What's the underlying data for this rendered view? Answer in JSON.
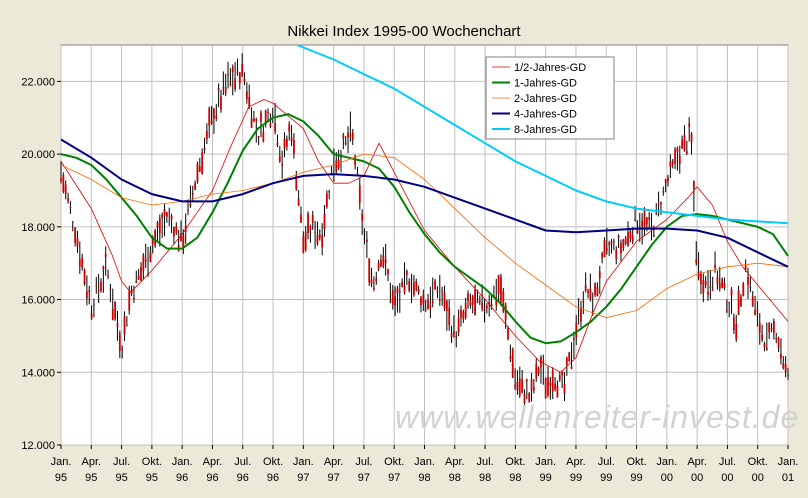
{
  "chart_data": {
    "type": "line",
    "title": "Nikkei Index 1995-00 Wochenchart",
    "watermark": "www.wellenreiter-invest.de",
    "x_ticks": [
      [
        "Jan.",
        "95"
      ],
      [
        "Apr.",
        "95"
      ],
      [
        "Jul.",
        "95"
      ],
      [
        "Okt.",
        "95"
      ],
      [
        "Jan.",
        "96"
      ],
      [
        "Apr.",
        "96"
      ],
      [
        "Jul.",
        "96"
      ],
      [
        "Okt.",
        "96"
      ],
      [
        "Jan.",
        "97"
      ],
      [
        "Apr.",
        "97"
      ],
      [
        "Jul.",
        "97"
      ],
      [
        "Okt.",
        "97"
      ],
      [
        "Jan.",
        "98"
      ],
      [
        "Apr.",
        "98"
      ],
      [
        "Jul.",
        "98"
      ],
      [
        "Okt.",
        "98"
      ],
      [
        "Jan.",
        "99"
      ],
      [
        "Apr.",
        "99"
      ],
      [
        "Jul.",
        "99"
      ],
      [
        "Okt.",
        "99"
      ],
      [
        "Jan.",
        "00"
      ],
      [
        "Apr.",
        "00"
      ],
      [
        "Jul.",
        "00"
      ],
      [
        "Okt.",
        "00"
      ],
      [
        "Jan.",
        "01"
      ]
    ],
    "y_ticks": [
      "12.000",
      "14.000",
      "16.000",
      "18.000",
      "20.000",
      "22.000"
    ],
    "ylim": [
      12000,
      23000
    ],
    "xlim": [
      0,
      24
    ],
    "grid": true,
    "legend_position": "top-right",
    "colors": {
      "bars_high_low": "#000000",
      "bars_body": "#CC0000",
      "plot_bg": "#FFFFFF",
      "frame_bg": "#ECE9D8",
      "grid": "#C0C0C0",
      "watermark": "#D2D2D2"
    },
    "series": [
      {
        "name": "1/2-Jahres-GD",
        "color": "#E00000",
        "width": 0.8,
        "x": [
          0,
          1,
          1.7,
          2,
          2.3,
          3,
          4,
          4.5,
          5,
          5.6,
          6.2,
          6.7,
          7,
          8,
          8.5,
          9,
          9.5,
          10,
          10.5,
          11,
          12,
          13,
          14,
          15,
          15.8,
          16.5,
          17,
          17.5,
          18,
          19,
          20,
          20.7,
          21,
          21.5,
          22,
          22.5,
          23,
          24
        ],
        "y": [
          19800,
          18500,
          17200,
          16500,
          16200,
          16800,
          17800,
          18400,
          19000,
          20200,
          21300,
          21500,
          21400,
          20700,
          19800,
          19200,
          19200,
          19400,
          20300,
          19500,
          17900,
          16900,
          16000,
          15000,
          14300,
          14000,
          14400,
          15500,
          16500,
          17600,
          18200,
          18800,
          19100,
          18600,
          17600,
          16900,
          16400,
          15400
        ]
      },
      {
        "name": "1-Jahres-GD",
        "color": "#008000",
        "width": 2,
        "x": [
          0,
          0.5,
          1,
          1.5,
          2,
          2.5,
          3,
          3.5,
          4,
          4.5,
          5,
          5.5,
          6,
          6.5,
          7,
          7.5,
          8,
          8.5,
          9,
          9.5,
          10,
          10.5,
          11,
          11.5,
          12,
          12.5,
          13,
          13.5,
          14,
          14.5,
          15,
          15.5,
          16,
          16.5,
          17,
          17.5,
          18,
          18.5,
          19,
          19.5,
          20,
          20.5,
          21,
          21.5,
          22,
          22.5,
          23,
          23.5,
          24
        ],
        "y": [
          20000,
          19900,
          19700,
          19300,
          18800,
          18300,
          17700,
          17400,
          17400,
          17700,
          18400,
          19200,
          20100,
          20700,
          21000,
          21100,
          20900,
          20500,
          20000,
          19900,
          19800,
          19600,
          19100,
          18400,
          17800,
          17300,
          16900,
          16600,
          16300,
          15900,
          15400,
          14950,
          14800,
          14850,
          15100,
          15400,
          15800,
          16300,
          16900,
          17500,
          18000,
          18300,
          18350,
          18300,
          18200,
          18100,
          18000,
          17800,
          17200
        ]
      },
      {
        "name": "2-Jahres-GD",
        "color": "#FF6600",
        "width": 0.8,
        "x": [
          0,
          1,
          2,
          3,
          4,
          5,
          6,
          7,
          8,
          9,
          10,
          11,
          12,
          13,
          14,
          15,
          16,
          17,
          18,
          19,
          20,
          21,
          22,
          23,
          24
        ],
        "y": [
          19700,
          19300,
          18800,
          18600,
          18700,
          18900,
          19000,
          19200,
          19500,
          19700,
          20000,
          19900,
          19300,
          18500,
          17700,
          17000,
          16400,
          15800,
          15500,
          15700,
          16300,
          16700,
          16900,
          17000,
          16900
        ]
      },
      {
        "name": "4-Jahres-GD",
        "color": "#000080",
        "width": 2,
        "x": [
          0,
          1,
          2,
          3,
          4,
          5,
          6,
          7,
          8,
          9,
          10,
          11,
          12,
          13,
          14,
          15,
          16,
          17,
          18,
          19,
          20,
          21,
          22,
          23,
          24
        ],
        "y": [
          20400,
          19900,
          19300,
          18900,
          18700,
          18700,
          18900,
          19200,
          19400,
          19450,
          19400,
          19300,
          19100,
          18800,
          18500,
          18200,
          17900,
          17850,
          17900,
          17950,
          17950,
          17900,
          17700,
          17300,
          16900
        ]
      },
      {
        "name": "8-Jahres-GD",
        "color": "#00CCFF",
        "width": 2,
        "x": [
          7.8,
          9,
          10,
          11,
          12,
          13,
          14,
          15,
          16,
          17,
          18,
          19,
          20,
          21,
          22,
          23,
          24
        ],
        "y": [
          23000,
          22600,
          22200,
          21800,
          21300,
          20800,
          20300,
          19800,
          19400,
          19000,
          18700,
          18500,
          18400,
          18300,
          18200,
          18150,
          18100
        ]
      }
    ],
    "price_anchors": {
      "x": [
        0,
        0.5,
        1,
        1.5,
        2,
        2.3,
        2.5,
        3,
        3.5,
        4,
        4.5,
        5,
        5.5,
        6,
        6.5,
        7,
        7.3,
        7.6,
        8,
        8.3,
        8.6,
        9,
        9.3,
        9.6,
        10,
        10.3,
        10.6,
        11,
        11.5,
        12,
        12.5,
        13,
        13.5,
        14,
        14.5,
        15,
        15.5,
        15.8,
        16,
        16.3,
        16.6,
        17,
        17.3,
        17.6,
        18,
        18.5,
        19,
        19.5,
        20,
        20.5,
        20.8,
        21,
        21.3,
        21.6,
        22,
        22.3,
        22.6,
        23,
        23.3,
        23.6,
        24
      ],
      "y": [
        19500,
        17800,
        15800,
        16900,
        14700,
        16200,
        16500,
        17500,
        18300,
        17600,
        19500,
        21000,
        22000,
        22300,
        20500,
        21300,
        19800,
        20800,
        17600,
        18000,
        17800,
        19800,
        20100,
        20600,
        17800,
        16400,
        17400,
        15800,
        16600,
        15900,
        16300,
        15000,
        15900,
        15800,
        16400,
        13800,
        13300,
        14200,
        13700,
        13900,
        13500,
        15200,
        16300,
        16000,
        17400,
        17400,
        18200,
        17900,
        19200,
        20200,
        20500,
        16900,
        16400,
        16800,
        16000,
        15400,
        16900,
        15400,
        14800,
        15200,
        13800
      ]
    }
  }
}
